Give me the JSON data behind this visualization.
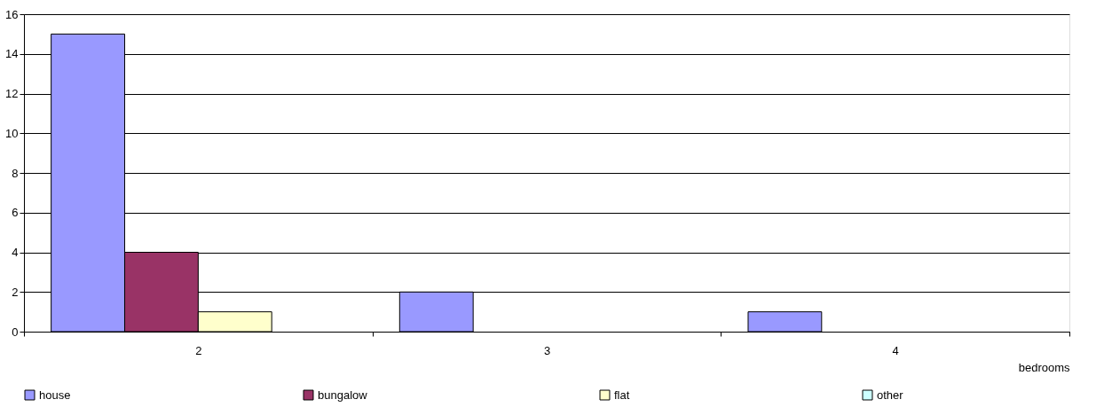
{
  "chart_data": {
    "type": "bar",
    "xlabel": "bedrooms",
    "categories": [
      "2",
      "3",
      "4"
    ],
    "series": [
      {
        "name": "house",
        "color": "#9999ff",
        "values": [
          15,
          2,
          1
        ]
      },
      {
        "name": "bungalow",
        "color": "#993366",
        "values": [
          4,
          null,
          null
        ]
      },
      {
        "name": "flat",
        "color": "#ffffcc",
        "values": [
          1,
          null,
          null
        ]
      },
      {
        "name": "other",
        "color": "#ccffff",
        "values": [
          null,
          null,
          null
        ]
      }
    ],
    "ylim": [
      0,
      16
    ],
    "yticks": [
      0,
      2,
      4,
      6,
      8,
      10,
      12,
      14,
      16
    ],
    "grid": "y",
    "legend": "bottom"
  }
}
